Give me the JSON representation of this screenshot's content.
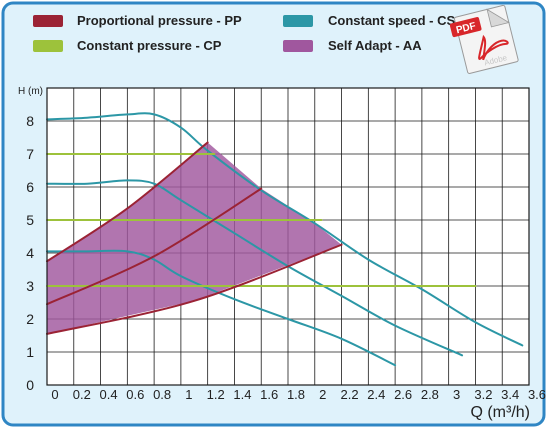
{
  "legend": {
    "items": [
      {
        "label": "Proportional pressure - PP",
        "color": "#9b2335"
      },
      {
        "label": "Constant pressure - CP",
        "color": "#9dc23b"
      },
      {
        "label": "Constant speed - CS",
        "color": "#2c97a6"
      },
      {
        "label": "Self Adapt - AA",
        "color": "#a0579e"
      }
    ]
  },
  "pdf_badge": {
    "label": "PDF",
    "brand": "Adobe",
    "icon": "pdf-document-icon"
  },
  "colors": {
    "frame": "#2f86c4",
    "background": "#dff2fb",
    "grid": "#1a1a1a"
  },
  "chart_data": {
    "type": "line",
    "ylabel": "H (m)",
    "xlabel": "Q (m³/h)",
    "xlim": [
      0,
      3.6
    ],
    "ylim": [
      0,
      9
    ],
    "x_ticks": [
      "0",
      "0.2",
      "0.4",
      "0.6",
      "0.8",
      "1",
      "1.2",
      "1.4",
      "1.6",
      "1.8",
      "2",
      "2.2",
      "2.4",
      "2.6",
      "2.8",
      "3",
      "3.2",
      "3.4",
      "3.6"
    ],
    "y_ticks": [
      "0",
      "1",
      "2",
      "3",
      "4",
      "5",
      "6",
      "7",
      "8"
    ],
    "grid": true,
    "series": [
      {
        "name": "Constant speed - CS",
        "color": "#2c97a6",
        "points": [
          [
            0,
            8.05
          ],
          [
            0.3,
            8.1
          ],
          [
            0.6,
            8.2
          ],
          [
            0.8,
            8.2
          ],
          [
            1.0,
            7.8
          ],
          [
            1.2,
            7.1
          ],
          [
            1.6,
            5.9
          ],
          [
            2.0,
            4.9
          ],
          [
            2.4,
            3.8
          ],
          [
            2.8,
            2.9
          ],
          [
            3.2,
            1.9
          ],
          [
            3.55,
            1.2
          ]
        ]
      },
      {
        "name": "Constant speed - CS",
        "color": "#2c97a6",
        "points": [
          [
            0,
            6.1
          ],
          [
            0.3,
            6.1
          ],
          [
            0.6,
            6.2
          ],
          [
            0.8,
            6.1
          ],
          [
            1.0,
            5.6
          ],
          [
            1.4,
            4.6
          ],
          [
            1.8,
            3.6
          ],
          [
            2.2,
            2.7
          ],
          [
            2.6,
            1.8
          ],
          [
            3.1,
            0.9
          ]
        ]
      },
      {
        "name": "Constant speed - CS",
        "color": "#2c97a6",
        "points": [
          [
            0,
            4.05
          ],
          [
            0.3,
            4.05
          ],
          [
            0.6,
            4.05
          ],
          [
            0.8,
            3.8
          ],
          [
            1.0,
            3.3
          ],
          [
            1.4,
            2.6
          ],
          [
            1.8,
            2.0
          ],
          [
            2.2,
            1.4
          ],
          [
            2.6,
            0.6
          ]
        ]
      },
      {
        "name": "Constant pressure - CP",
        "color": "#9dc23b",
        "points": [
          [
            0,
            7.0
          ],
          [
            1.25,
            7.0
          ]
        ]
      },
      {
        "name": "Constant pressure - CP",
        "color": "#9dc23b",
        "points": [
          [
            0,
            5.0
          ],
          [
            2.05,
            5.0
          ]
        ]
      },
      {
        "name": "Constant pressure - CP",
        "color": "#9dc23b",
        "points": [
          [
            0,
            3.0
          ],
          [
            3.2,
            3.0
          ]
        ]
      },
      {
        "name": "Proportional pressure - PP",
        "color": "#9b2335",
        "points": [
          [
            0,
            3.75
          ],
          [
            0.6,
            5.35
          ],
          [
            1.2,
            7.35
          ]
        ]
      },
      {
        "name": "Proportional pressure - PP",
        "color": "#9b2335",
        "points": [
          [
            0,
            2.45
          ],
          [
            0.8,
            3.9
          ],
          [
            1.6,
            5.95
          ]
        ]
      },
      {
        "name": "Proportional pressure - PP",
        "color": "#9b2335",
        "points": [
          [
            0,
            1.55
          ],
          [
            1.1,
            2.55
          ],
          [
            2.2,
            4.25
          ]
        ]
      }
    ],
    "areas": [
      {
        "name": "Self Adapt - AA",
        "color": "#a0579e",
        "points": [
          [
            0,
            3.75
          ],
          [
            0.6,
            5.35
          ],
          [
            1.2,
            7.35
          ],
          [
            1.6,
            5.95
          ],
          [
            2.0,
            4.9
          ],
          [
            2.2,
            4.25
          ],
          [
            1.1,
            2.55
          ],
          [
            0,
            1.55
          ]
        ]
      }
    ]
  }
}
